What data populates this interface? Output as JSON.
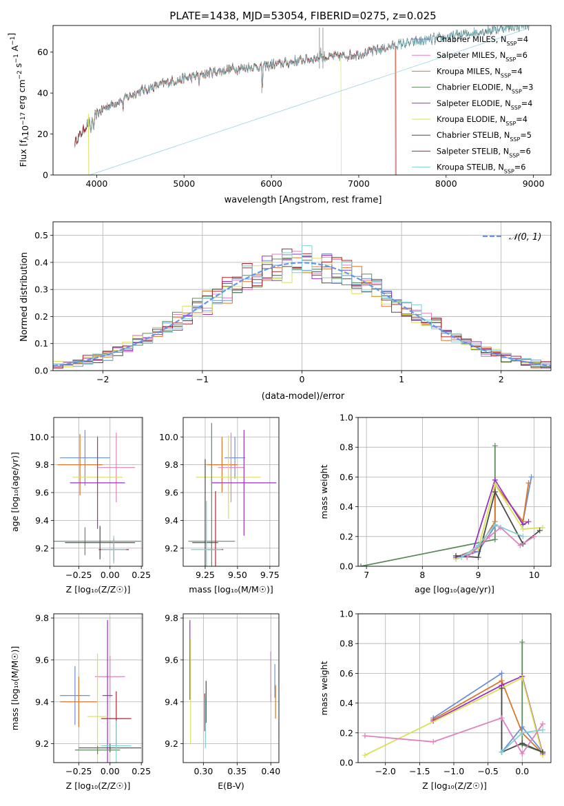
{
  "figure_title": "PLATE=1438, MJD=53054, FIBERID=0275, z=0.025",
  "colors": {
    "chabrier_miles": "#6b8fd6",
    "salpeter_miles": "#e07fbf",
    "kroupa_miles": "#d9762a",
    "chabrier_elodie": "#5b8a5b",
    "salpeter_elodie": "#9a2fc4",
    "kroupa_elodie": "#d9e052",
    "chabrier_stelib": "#4a4a4a",
    "salpeter_stelib": "#b5222a",
    "kroupa_stelib": "#7fcfd6",
    "normal_curve": "#6495ed"
  },
  "chart_data": [
    {
      "id": "spectrum",
      "type": "line",
      "xlabel": "wavelength [Angstrom, rest frame]",
      "ylabel": "Flux [f$_\\lambda$10$^{-17}$ erg cm$^{-2}$ s$^{-1}$ A$^{-1}$]",
      "xlim": [
        3500,
        9200
      ],
      "ylim": [
        0,
        73
      ],
      "xticks": [
        "4000",
        "5000",
        "6000",
        "7000",
        "8000",
        "9000"
      ],
      "yticks": [
        "0",
        "20",
        "40",
        "60"
      ],
      "legend_position": "top-right",
      "legend": [
        {
          "base": "Chabrier MILES, N",
          "sub": "SSP",
          "tail": "=4",
          "color_key": "chabrier_miles"
        },
        {
          "base": "Salpeter MILES, N",
          "sub": "SSP",
          "tail": "=6",
          "color_key": "salpeter_miles"
        },
        {
          "base": "Kroupa MILES, N",
          "sub": "SSP",
          "tail": "=4",
          "color_key": "kroupa_miles"
        },
        {
          "base": "Chabrier ELODIE, N",
          "sub": "SSP",
          "tail": "=3",
          "color_key": "chabrier_elodie"
        },
        {
          "base": "Salpeter ELODIE, N",
          "sub": "SSP",
          "tail": "=4",
          "color_key": "salpeter_elodie"
        },
        {
          "base": "Kroupa ELODIE, N",
          "sub": "SSP",
          "tail": "=4",
          "color_key": "kroupa_elodie"
        },
        {
          "base": "Chabrier STELIB, N",
          "sub": "SSP",
          "tail": "=5",
          "color_key": "chabrier_stelib"
        },
        {
          "base": "Salpeter STELIB, N",
          "sub": "SSP",
          "tail": "=6",
          "color_key": "salpeter_stelib"
        },
        {
          "base": "Kroupa STELIB, N",
          "sub": "SSP",
          "tail": "=6",
          "color_key": "kroupa_stelib"
        }
      ],
      "continuum": [
        [
          3750,
          16
        ],
        [
          3850,
          22
        ],
        [
          3950,
          28
        ],
        [
          4100,
          33
        ],
        [
          4300,
          37
        ],
        [
          4500,
          41
        ],
        [
          4800,
          45
        ],
        [
          5000,
          47
        ],
        [
          5300,
          50
        ],
        [
          5600,
          52
        ],
        [
          5900,
          53
        ],
        [
          6200,
          55
        ],
        [
          6500,
          57
        ],
        [
          6800,
          58
        ],
        [
          7000,
          59
        ],
        [
          7200,
          61
        ],
        [
          7500,
          64
        ],
        [
          7800,
          66
        ],
        [
          8100,
          68
        ],
        [
          8400,
          70
        ],
        [
          8700,
          72
        ],
        [
          9000,
          74
        ]
      ],
      "model_ends": [
        {
          "series": "kroupa_elodie",
          "end": 6800
        },
        {
          "series": "salpeter_stelib",
          "end": 7420
        },
        {
          "series": "kroupa_miles",
          "end": 7430
        },
        {
          "series": "kroupa_stelib",
          "end": 3920
        }
      ]
    },
    {
      "id": "residuals",
      "type": "histogram",
      "xlabel": "(data-model)/error",
      "ylabel": "Normed distribution",
      "xlim": [
        -2.5,
        2.5
      ],
      "ylim": [
        0,
        0.55
      ],
      "xticks": [
        "−2",
        "−1",
        "0",
        "1",
        "2"
      ],
      "yticks": [
        "0.0",
        "0.1",
        "0.2",
        "0.3",
        "0.4",
        "0.5"
      ],
      "grid": true,
      "legend_position": "top-right",
      "legend_label": "𝒩(0, 1)",
      "bin_width": 0.1,
      "series_keys": [
        "chabrier_miles",
        "salpeter_miles",
        "kroupa_miles",
        "chabrier_elodie",
        "salpeter_elodie",
        "kroupa_elodie",
        "chabrier_stelib",
        "salpeter_stelib",
        "kroupa_stelib"
      ]
    },
    {
      "id": "age-vs-Z",
      "type": "errorbar",
      "xlabel": "Z [log₁₀(Z/Z☉)]",
      "ylabel": "age  [log₁₀(age/yr)]",
      "xlim": [
        -0.45,
        0.26
      ],
      "ylim": [
        9.07,
        10.14
      ],
      "xticks": [
        -0.25,
        0.0,
        0.25
      ],
      "xtick_labels": [
        "−0.25",
        "0.00",
        "0.25"
      ],
      "yticks": [
        9.2,
        9.4,
        9.6,
        9.8,
        10.0
      ],
      "ytick_labels": [
        "9.2",
        "9.4",
        "9.6",
        "9.8",
        "10.0"
      ],
      "grid": true,
      "points": [
        {
          "k": "chabrier_miles",
          "x": -0.2,
          "xerr": 0.2,
          "y": 9.85,
          "yerr": 0.2
        },
        {
          "k": "kroupa_miles",
          "x": -0.24,
          "xerr": 0.18,
          "y": 9.8,
          "yerr": 0.22
        },
        {
          "k": "salpeter_miles",
          "x": 0.05,
          "xerr": 0.15,
          "y": 9.78,
          "yerr": 0.25
        },
        {
          "k": "kroupa_elodie",
          "x": -0.1,
          "xerr": 0.2,
          "y": 9.71,
          "yerr": 0.3
        },
        {
          "k": "salpeter_elodie",
          "x": -0.1,
          "xerr": 0.22,
          "y": 9.67,
          "yerr": 0.33
        },
        {
          "k": "chabrier_elodie",
          "x": -0.2,
          "xerr": 0.45,
          "y": 9.25,
          "yerr": 0.1
        },
        {
          "k": "chabrier_stelib",
          "x": -0.08,
          "xerr": 0.28,
          "y": 9.24,
          "yerr": 0.12
        },
        {
          "k": "salpeter_stelib",
          "x": 0.03,
          "xerr": 0.12,
          "y": 9.19,
          "yerr": 0.08
        },
        {
          "k": "kroupa_stelib",
          "x": 0.03,
          "xerr": 0.1,
          "y": 9.19,
          "yerr": 0.1
        }
      ]
    },
    {
      "id": "age-vs-mass",
      "type": "errorbar",
      "xlabel": "mass [log₁₀(M/M☉)]",
      "ylabel": "",
      "xlim": [
        9.08,
        9.82
      ],
      "ylim": [
        9.07,
        10.14
      ],
      "xticks": [
        9.25,
        9.5,
        9.75
      ],
      "xtick_labels": [
        "9.25",
        "9.50",
        "9.75"
      ],
      "yticks": [
        9.2,
        9.4,
        9.6,
        9.8,
        10.0
      ],
      "ytick_labels": [
        "9.2",
        "9.4",
        "9.6",
        "9.8",
        "10.0"
      ],
      "grid": true,
      "points": [
        {
          "k": "chabrier_miles",
          "x": 9.48,
          "xerr": 0.08,
          "y": 9.85,
          "yerr": 0.15
        },
        {
          "k": "kroupa_miles",
          "x": 9.38,
          "xerr": 0.12,
          "y": 9.8,
          "yerr": 0.2
        },
        {
          "k": "salpeter_miles",
          "x": 9.45,
          "xerr": 0.1,
          "y": 9.78,
          "yerr": 0.25
        },
        {
          "k": "kroupa_elodie",
          "x": 9.43,
          "xerr": 0.25,
          "y": 9.71,
          "yerr": 0.3
        },
        {
          "k": "salpeter_elodie",
          "x": 9.55,
          "xerr": 0.25,
          "y": 9.67,
          "yerr": 0.38
        },
        {
          "k": "chabrier_elodie",
          "x": 9.3,
          "xerr": 0.18,
          "y": 9.25,
          "yerr": 0.85
        },
        {
          "k": "chabrier_stelib",
          "x": 9.25,
          "xerr": 0.1,
          "y": 9.24,
          "yerr": 0.6
        },
        {
          "k": "salpeter_stelib",
          "x": 9.33,
          "xerr": 0.06,
          "y": 9.19,
          "yerr": 0.42
        },
        {
          "k": "kroupa_stelib",
          "x": 9.26,
          "xerr": 0.12,
          "y": 9.19,
          "yerr": 0.35
        }
      ]
    },
    {
      "id": "massweight-vs-age",
      "type": "line",
      "xlabel": "age  [log₁₀(age/yr)]",
      "ylabel": "mass weight",
      "xlim": [
        6.85,
        10.3
      ],
      "ylim": [
        0,
        1
      ],
      "xticks": [
        7,
        8,
        9,
        10
      ],
      "xtick_labels": [
        "7",
        "8",
        "9",
        "10"
      ],
      "yticks": [
        0,
        0.2,
        0.4,
        0.6,
        0.8,
        1.0
      ],
      "ytick_labels": [
        "0.0",
        "0.2",
        "0.4",
        "0.6",
        "0.8",
        "1.0"
      ],
      "grid": true,
      "series": [
        {
          "k": "chabrier_elodie",
          "x": [
            6.9,
            9.3,
            9.3
          ],
          "y": [
            0.0,
            0.18,
            0.81
          ]
        },
        {
          "k": "chabrier_miles",
          "x": [
            8.6,
            9.0,
            9.3,
            9.3,
            9.8,
            9.95
          ],
          "y": [
            0.05,
            0.1,
            0.27,
            0.55,
            0.3,
            0.6
          ]
        },
        {
          "k": "kroupa_miles",
          "x": [
            8.6,
            9.0,
            9.3,
            9.3,
            9.8,
            9.9
          ],
          "y": [
            0.06,
            0.12,
            0.3,
            0.55,
            0.3,
            0.56
          ]
        },
        {
          "k": "salpeter_elodie",
          "x": [
            8.6,
            8.9,
            9.3,
            9.8,
            9.9
          ],
          "y": [
            0.06,
            0.1,
            0.58,
            0.28,
            0.3
          ]
        },
        {
          "k": "kroupa_elodie",
          "x": [
            8.6,
            9.0,
            9.3,
            9.8,
            10.15
          ],
          "y": [
            0.05,
            0.12,
            0.55,
            0.25,
            0.26
          ]
        },
        {
          "k": "chabrier_stelib",
          "x": [
            8.6,
            9.0,
            9.3,
            9.8,
            10.1
          ],
          "y": [
            0.07,
            0.06,
            0.5,
            0.15,
            0.24
          ]
        },
        {
          "k": "salpeter_miles",
          "x": [
            8.8,
            9.2,
            9.4,
            9.75,
            10.0
          ],
          "y": [
            0.06,
            0.2,
            0.26,
            0.14,
            0.2
          ]
        },
        {
          "k": "kroupa_stelib",
          "x": [
            8.7,
            9.0,
            9.3,
            9.8
          ],
          "y": [
            0.06,
            0.14,
            0.28,
            0.2
          ]
        }
      ]
    },
    {
      "id": "mass-vs-Z",
      "type": "errorbar",
      "xlabel": "Z [log₁₀(Z/Z☉)]",
      "ylabel": "mass [log₁₀(M/M☉)]",
      "xlim": [
        -0.45,
        0.26
      ],
      "ylim": [
        9.11,
        9.82
      ],
      "xticks": [
        -0.25,
        0.0,
        0.25
      ],
      "xtick_labels": [
        "−0.25",
        "0.00",
        "0.25"
      ],
      "yticks": [
        9.2,
        9.4,
        9.6,
        9.8
      ],
      "ytick_labels": [
        "9.2",
        "9.4",
        "9.6",
        "9.8"
      ],
      "grid": true,
      "points": [
        {
          "k": "chabrier_miles",
          "x": -0.28,
          "xerr": 0.12,
          "y": 9.43,
          "yerr": 0.14
        },
        {
          "k": "salpeter_miles",
          "x": 0.0,
          "xerr": 0.12,
          "y": 9.52,
          "yerr": 0.1
        },
        {
          "k": "kroupa_miles",
          "x": -0.25,
          "xerr": 0.15,
          "y": 9.4,
          "yerr": 0.12
        },
        {
          "k": "salpeter_elodie",
          "x": -0.02,
          "xerr": 0.04,
          "y": 9.43,
          "yerr": 0.36
        },
        {
          "k": "kroupa_elodie",
          "x": -0.1,
          "xerr": 0.08,
          "y": 9.33,
          "yerr": 0.3
        },
        {
          "k": "salpeter_stelib",
          "x": 0.05,
          "xerr": 0.12,
          "y": 9.32,
          "yerr": 0.13
        },
        {
          "k": "chabrier_stelib",
          "x": 0.0,
          "xerr": 0.25,
          "y": 9.18,
          "yerr": 0.02
        },
        {
          "k": "chabrier_elodie",
          "x": -0.1,
          "xerr": 0.18,
          "y": 9.17,
          "yerr": 0.02
        },
        {
          "k": "kroupa_stelib",
          "x": 0.05,
          "xerr": 0.12,
          "y": 9.19,
          "yerr": 0.12
        }
      ]
    },
    {
      "id": "mass-vs-EBV",
      "type": "errorbar",
      "xlabel": "E(B-V)",
      "ylabel": "",
      "xlim": [
        0.27,
        0.412
      ],
      "ylim": [
        9.11,
        9.82
      ],
      "xticks": [
        0.3,
        0.35,
        0.4
      ],
      "xtick_labels": [
        "0.30",
        "0.35",
        "0.40"
      ],
      "yticks": [
        9.2,
        9.4,
        9.6,
        9.8
      ],
      "ytick_labels": [
        "9.2",
        "9.4",
        "9.6",
        "9.8"
      ],
      "grid": true,
      "points": [
        {
          "k": "salpeter_elodie",
          "x": 0.28,
          "xerr": 0,
          "y": 9.6,
          "yerr": 0.19
        },
        {
          "k": "kroupa_elodie",
          "x": 0.281,
          "xerr": 0,
          "y": 9.45,
          "yerr": 0.25
        },
        {
          "k": "salpeter_stelib",
          "x": 0.302,
          "xerr": 0,
          "y": 9.35,
          "yerr": 0.09
        },
        {
          "k": "chabrier_stelib",
          "x": 0.304,
          "xerr": 0,
          "y": 9.4,
          "yerr": 0.1
        },
        {
          "k": "kroupa_stelib",
          "x": 0.303,
          "xerr": 0,
          "y": 9.3,
          "yerr": 0.12
        },
        {
          "k": "salpeter_miles",
          "x": 0.4,
          "xerr": 0,
          "y": 9.52,
          "yerr": 0.12
        },
        {
          "k": "kroupa_miles",
          "x": 0.407,
          "xerr": 0,
          "y": 9.4,
          "yerr": 0.08
        },
        {
          "k": "chabrier_miles",
          "x": 0.406,
          "xerr": 0,
          "y": 9.5,
          "yerr": 0.08
        }
      ]
    },
    {
      "id": "massweight-vs-Z",
      "type": "line",
      "xlabel": "Z [log₁₀(Z/Z☉)]",
      "ylabel": "mass weight",
      "xlim": [
        -2.4,
        0.42
      ],
      "ylim": [
        0,
        1
      ],
      "xticks": [
        -2.0,
        -1.5,
        -1.0,
        -0.5,
        0.0
      ],
      "xtick_labels": [
        "−2.0",
        "−1.5",
        "−1.0",
        "−0.5",
        "0.0"
      ],
      "yticks": [
        0,
        0.2,
        0.4,
        0.6,
        0.8,
        1.0
      ],
      "ytick_labels": [
        "0.0",
        "0.2",
        "0.4",
        "0.6",
        "0.8",
        "1.0"
      ],
      "grid": true,
      "series": [
        {
          "k": "chabrier_elodie",
          "x": [
            0,
            0,
            0.3
          ],
          "y": [
            0.81,
            0.12,
            0.07
          ]
        },
        {
          "k": "chabrier_miles",
          "x": [
            -1.3,
            -0.3,
            -0.3,
            0,
            0.3
          ],
          "y": [
            0.3,
            0.6,
            0.07,
            0.24,
            0.07
          ]
        },
        {
          "k": "kroupa_miles",
          "x": [
            -1.3,
            -0.3,
            0,
            0.3
          ],
          "y": [
            0.29,
            0.55,
            0.2,
            0.06
          ]
        },
        {
          "k": "salpeter_elodie",
          "x": [
            -1.3,
            -0.3,
            0,
            0.3
          ],
          "y": [
            0.28,
            0.52,
            0.58,
            0.06
          ]
        },
        {
          "k": "kroupa_elodie",
          "x": [
            -2.3,
            -0.3,
            0,
            0.3
          ],
          "y": [
            0.05,
            0.5,
            0.57,
            0.05
          ]
        },
        {
          "k": "chabrier_stelib",
          "x": [
            -0.3,
            -0.3,
            0,
            0.3
          ],
          "y": [
            0.5,
            0.07,
            0.13,
            0.07
          ]
        },
        {
          "k": "salpeter_miles",
          "x": [
            -2.3,
            -1.3,
            -0.3,
            0,
            0.3
          ],
          "y": [
            0.18,
            0.14,
            0.3,
            0.06,
            0.26
          ]
        },
        {
          "k": "kroupa_stelib",
          "x": [
            -0.3,
            0,
            0.3
          ],
          "y": [
            0.07,
            0.2,
            0.22
          ]
        }
      ]
    }
  ]
}
